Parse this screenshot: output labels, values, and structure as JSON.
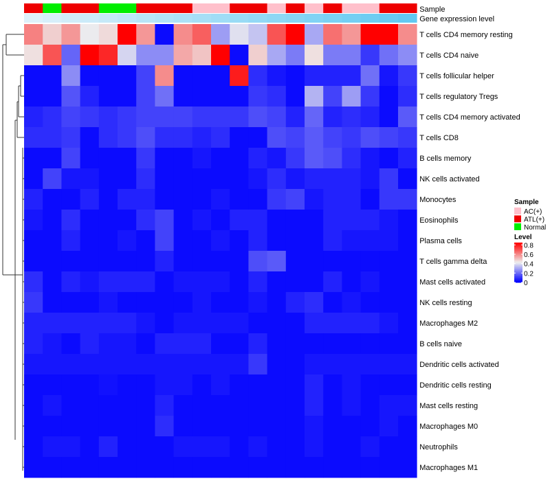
{
  "chart_data": {
    "type": "heatmap",
    "title": "",
    "annotations": {
      "sample_label": "Sample",
      "gene_label": "Gene expression level",
      "sample": [
        "ATL(+)",
        "Normal",
        "ATL(+)",
        "ATL(+)",
        "Normal",
        "Normal",
        "ATL(+)",
        "ATL(+)",
        "ATL(+)",
        "AC(+)",
        "AC(+)",
        "ATL(+)",
        "ATL(+)",
        "AC(+)",
        "ATL(+)",
        "AC(+)",
        "ATL(+)",
        "AC(+)",
        "AC(+)",
        "ATL(+)",
        "ATL(+)"
      ],
      "gene_level": [
        0.08,
        0.12,
        0.16,
        0.2,
        0.24,
        0.28,
        0.32,
        0.36,
        0.4,
        0.44,
        0.48,
        0.52,
        0.56,
        0.6,
        0.64,
        0.68,
        0.72,
        0.76,
        0.8,
        0.84,
        0.88
      ]
    },
    "rows": [
      "T cells CD4 memory resting",
      "T cells CD4 naive",
      "T cells follicular helper",
      "T cells regulatory  Tregs",
      "T cells CD4 memory activated",
      "T cells CD8",
      "B cells memory",
      "NK cells activated",
      "Monocytes",
      "Eosinophils",
      "Plasma cells",
      "T cells gamma delta",
      "Mast cells activated",
      "NK cells resting",
      "Macrophages M2",
      "B cells naive",
      "Dendritic cells activated",
      "Dendritic cells resting",
      "Mast cells resting",
      "Macrophages M0",
      "Neutrophils",
      "Macrophages M1"
    ],
    "values": [
      [
        0.62,
        0.48,
        0.58,
        0.42,
        0.46,
        0.85,
        0.58,
        0.02,
        0.6,
        0.68,
        0.28,
        0.4,
        0.35,
        0.7,
        0.85,
        0.3,
        0.65,
        0.58,
        0.85,
        0.85,
        0.6
      ],
      [
        0.45,
        0.7,
        0.18,
        0.85,
        0.78,
        0.38,
        0.25,
        0.25,
        0.55,
        0.5,
        0.85,
        0.02,
        0.48,
        0.3,
        0.22,
        0.45,
        0.22,
        0.22,
        0.1,
        0.2,
        0.25
      ],
      [
        0.02,
        0.02,
        0.25,
        0.02,
        0.02,
        0.02,
        0.12,
        0.6,
        0.02,
        0.02,
        0.02,
        0.8,
        0.08,
        0.04,
        0.02,
        0.06,
        0.06,
        0.06,
        0.2,
        0.04,
        0.1
      ],
      [
        0.02,
        0.02,
        0.15,
        0.06,
        0.02,
        0.02,
        0.12,
        0.2,
        0.02,
        0.02,
        0.02,
        0.02,
        0.1,
        0.08,
        0.02,
        0.32,
        0.12,
        0.28,
        0.1,
        0.02,
        0.08
      ],
      [
        0.06,
        0.08,
        0.12,
        0.1,
        0.08,
        0.1,
        0.12,
        0.12,
        0.12,
        0.1,
        0.1,
        0.1,
        0.14,
        0.12,
        0.06,
        0.18,
        0.06,
        0.08,
        0.06,
        0.02,
        0.16
      ],
      [
        0.08,
        0.08,
        0.1,
        0.02,
        0.08,
        0.1,
        0.14,
        0.08,
        0.08,
        0.06,
        0.08,
        0.02,
        0.02,
        0.14,
        0.12,
        0.16,
        0.12,
        0.1,
        0.14,
        0.12,
        0.1
      ],
      [
        0.02,
        0.02,
        0.12,
        0.02,
        0.02,
        0.02,
        0.1,
        0.02,
        0.02,
        0.04,
        0.02,
        0.02,
        0.06,
        0.04,
        0.1,
        0.16,
        0.14,
        0.08,
        0.04,
        0.02,
        0.06
      ],
      [
        0.02,
        0.12,
        0.04,
        0.04,
        0.02,
        0.02,
        0.08,
        0.02,
        0.02,
        0.02,
        0.02,
        0.02,
        0.04,
        0.08,
        0.04,
        0.06,
        0.06,
        0.06,
        0.04,
        0.1,
        0.02
      ],
      [
        0.06,
        0.02,
        0.02,
        0.06,
        0.02,
        0.06,
        0.06,
        0.02,
        0.02,
        0.02,
        0.04,
        0.02,
        0.02,
        0.1,
        0.12,
        0.04,
        0.06,
        0.06,
        0.02,
        0.1,
        0.1
      ],
      [
        0.04,
        0.02,
        0.08,
        0.02,
        0.02,
        0.02,
        0.08,
        0.12,
        0.02,
        0.04,
        0.02,
        0.06,
        0.06,
        0.02,
        0.02,
        0.02,
        0.06,
        0.06,
        0.06,
        0.04,
        0.02
      ],
      [
        0.02,
        0.02,
        0.06,
        0.02,
        0.02,
        0.04,
        0.02,
        0.12,
        0.02,
        0.02,
        0.04,
        0.02,
        0.06,
        0.02,
        0.02,
        0.02,
        0.06,
        0.04,
        0.04,
        0.04,
        0.02
      ],
      [
        0.02,
        0.02,
        0.02,
        0.02,
        0.02,
        0.02,
        0.02,
        0.06,
        0.02,
        0.02,
        0.02,
        0.02,
        0.14,
        0.16,
        0.02,
        0.02,
        0.02,
        0.02,
        0.02,
        0.02,
        0.02
      ],
      [
        0.08,
        0.02,
        0.06,
        0.04,
        0.06,
        0.06,
        0.06,
        0.02,
        0.04,
        0.04,
        0.04,
        0.02,
        0.06,
        0.02,
        0.02,
        0.02,
        0.06,
        0.02,
        0.04,
        0.02,
        0.02
      ],
      [
        0.1,
        0.02,
        0.02,
        0.02,
        0.04,
        0.02,
        0.02,
        0.02,
        0.02,
        0.04,
        0.02,
        0.02,
        0.04,
        0.02,
        0.06,
        0.08,
        0.02,
        0.04,
        0.02,
        0.02,
        0.02
      ],
      [
        0.06,
        0.06,
        0.06,
        0.06,
        0.06,
        0.06,
        0.04,
        0.02,
        0.04,
        0.04,
        0.04,
        0.04,
        0.02,
        0.02,
        0.02,
        0.06,
        0.06,
        0.06,
        0.06,
        0.04,
        0.02
      ],
      [
        0.06,
        0.04,
        0.02,
        0.06,
        0.04,
        0.04,
        0.02,
        0.06,
        0.06,
        0.06,
        0.02,
        0.02,
        0.06,
        0.02,
        0.02,
        0.02,
        0.02,
        0.02,
        0.02,
        0.02,
        0.02
      ],
      [
        0.04,
        0.04,
        0.04,
        0.04,
        0.04,
        0.04,
        0.04,
        0.04,
        0.04,
        0.04,
        0.04,
        0.04,
        0.1,
        0.02,
        0.02,
        0.04,
        0.04,
        0.04,
        0.04,
        0.04,
        0.04
      ],
      [
        0.02,
        0.02,
        0.02,
        0.02,
        0.03,
        0.02,
        0.02,
        0.04,
        0.04,
        0.02,
        0.04,
        0.02,
        0.02,
        0.02,
        0.02,
        0.06,
        0.02,
        0.04,
        0.02,
        0.02,
        0.02
      ],
      [
        0.02,
        0.04,
        0.02,
        0.02,
        0.02,
        0.02,
        0.02,
        0.06,
        0.02,
        0.02,
        0.02,
        0.02,
        0.02,
        0.02,
        0.02,
        0.06,
        0.02,
        0.04,
        0.02,
        0.04,
        0.04
      ],
      [
        0.02,
        0.02,
        0.02,
        0.02,
        0.02,
        0.02,
        0.02,
        0.08,
        0.02,
        0.02,
        0.02,
        0.02,
        0.02,
        0.02,
        0.02,
        0.04,
        0.02,
        0.02,
        0.02,
        0.04,
        0.02
      ],
      [
        0.02,
        0.04,
        0.04,
        0.02,
        0.06,
        0.02,
        0.02,
        0.02,
        0.04,
        0.04,
        0.04,
        0.02,
        0.04,
        0.02,
        0.02,
        0.04,
        0.02,
        0.02,
        0.04,
        0.02,
        0.02
      ],
      [
        0.02,
        0.02,
        0.02,
        0.02,
        0.02,
        0.02,
        0.02,
        0.02,
        0.02,
        0.02,
        0.02,
        0.02,
        0.02,
        0.02,
        0.02,
        0.02,
        0.02,
        0.02,
        0.02,
        0.02,
        0.02
      ]
    ],
    "legend": {
      "sample_title": "Sample",
      "sample_items": [
        {
          "label": "AC(+)",
          "color": "#ffc0cb"
        },
        {
          "label": "ATL(+)",
          "color": "#ee0000"
        },
        {
          "label": "Normal",
          "color": "#00ee00"
        }
      ],
      "level_title": "Level",
      "level_ticks": [
        "0.8",
        "0.6",
        "0.4",
        "0.2",
        "0"
      ],
      "level_tick_values": [
        0.8,
        0.6,
        0.4,
        0.2,
        0
      ],
      "range": [
        0,
        0.85
      ]
    },
    "colors": {
      "low": "#0000ff",
      "mid": "#eeeeee",
      "high": "#ff0000",
      "gene_low": "#eaf5fb",
      "gene_high": "#4fc3f0"
    }
  }
}
